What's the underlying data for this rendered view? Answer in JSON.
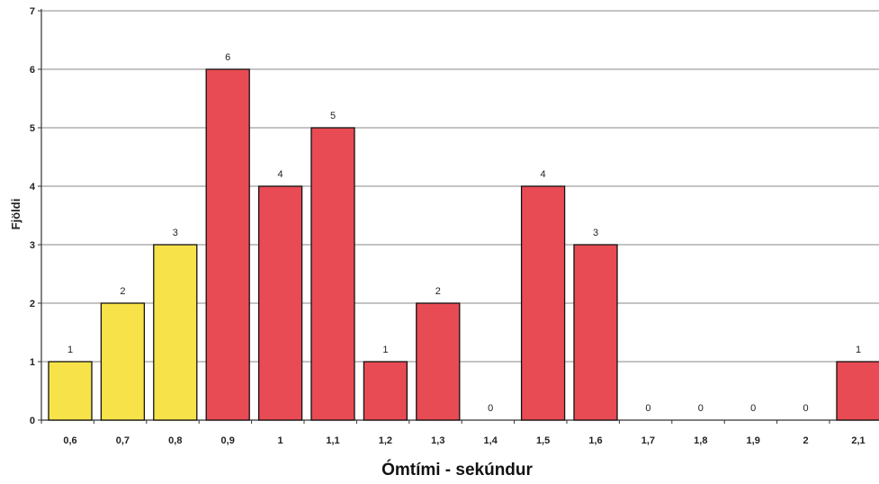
{
  "chart_data": {
    "type": "bar",
    "title": "",
    "xlabel": "Ómtími - sekúndur",
    "ylabel": "Fjöldi",
    "ylim": [
      0,
      7
    ],
    "yticks": [
      "0",
      "1",
      "2",
      "3",
      "4",
      "5",
      "6",
      "7"
    ],
    "grid": true,
    "categories": [
      "0,6",
      "0,7",
      "0,8",
      "0,9",
      "1",
      "1,1",
      "1,2",
      "1,3",
      "1,4",
      "1,5",
      "1,6",
      "1,7",
      "1,8",
      "1,9",
      "2",
      "2,1"
    ],
    "values": [
      1,
      2,
      3,
      6,
      4,
      5,
      1,
      2,
      0,
      4,
      3,
      0,
      0,
      0,
      0,
      1
    ],
    "data_labels": [
      "1",
      "2",
      "3",
      "6",
      "4",
      "5",
      "1",
      "2",
      "0",
      "4",
      "3",
      "0",
      "0",
      "0",
      "0",
      "1"
    ],
    "bar_colors": [
      "#f7e349",
      "#f7e349",
      "#f7e349",
      "#e84b53",
      "#e84b53",
      "#e84b53",
      "#e84b53",
      "#e84b53",
      "#e84b53",
      "#e84b53",
      "#e84b53",
      "#e84b53",
      "#e84b53",
      "#e84b53",
      "#e84b53",
      "#e84b53"
    ]
  }
}
